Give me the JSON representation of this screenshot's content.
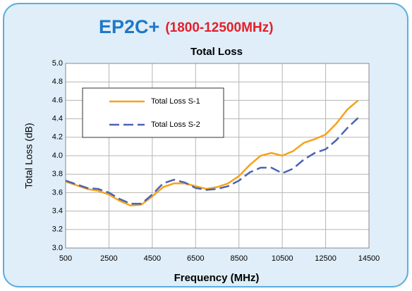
{
  "header": {
    "model": "EP2C+",
    "range": "(1800-12500MHz)"
  },
  "chart_data": {
    "type": "line",
    "title": "Total Loss",
    "x_label": "Frequency (MHz)",
    "y_label": "Total Loss (dB)",
    "x": [
      500,
      1000,
      1500,
      2000,
      2500,
      3000,
      3500,
      4000,
      4500,
      5000,
      5500,
      6000,
      6500,
      7000,
      7500,
      8000,
      8500,
      9000,
      9500,
      10000,
      10500,
      11000,
      11500,
      12000,
      12500,
      13000,
      13500,
      14000
    ],
    "series": [
      {
        "name": "Total Loss S-1",
        "color": "#f7a21b",
        "style": "solid",
        "values": [
          3.72,
          3.68,
          3.64,
          3.62,
          3.58,
          3.51,
          3.46,
          3.47,
          3.56,
          3.66,
          3.7,
          3.7,
          3.67,
          3.64,
          3.66,
          3.7,
          3.78,
          3.9,
          4.0,
          4.03,
          4.0,
          4.05,
          4.14,
          4.18,
          4.23,
          4.35,
          4.5,
          4.6
        ]
      },
      {
        "name": "Total Loss S-2",
        "color": "#4a64b2",
        "style": "dashed",
        "values": [
          3.73,
          3.69,
          3.65,
          3.64,
          3.6,
          3.53,
          3.48,
          3.48,
          3.58,
          3.7,
          3.74,
          3.71,
          3.65,
          3.63,
          3.64,
          3.67,
          3.73,
          3.82,
          3.87,
          3.87,
          3.81,
          3.86,
          3.96,
          4.03,
          4.07,
          4.17,
          4.3,
          4.41
        ]
      }
    ],
    "xlim": [
      500,
      14500
    ],
    "xticks": [
      500,
      2500,
      4500,
      6500,
      8500,
      10500,
      12500,
      14500
    ],
    "ylim": [
      3,
      5
    ],
    "yticks": [
      {
        "value": 3,
        "label": "3.0"
      },
      3.2,
      3.4,
      3.6,
      3.8,
      {
        "value": 4,
        "label": "4.0"
      },
      4.2,
      4.4,
      4.6,
      4.8,
      {
        "value": 5,
        "label": "5.0"
      }
    ],
    "grid": true,
    "legend": "upper left"
  }
}
